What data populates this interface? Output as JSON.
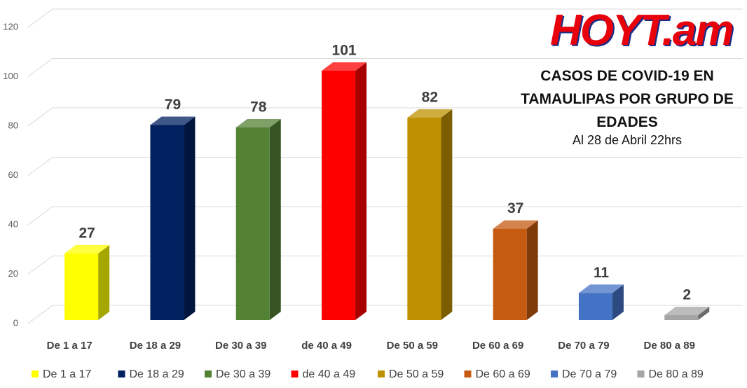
{
  "chart_data": {
    "type": "bar3d",
    "title": "CASOS DE COVID-19 EN TAMAULIPAS POR GRUPO DE EDADES",
    "subtitle": "Al 28 de Abril 22hrs",
    "logo": "HOYT.am",
    "categories": [
      "De 1 a 17",
      "De 18 a 29",
      "De 30 a 39",
      "de 40 a 49",
      "De 50 a 59",
      "De 60 a 69",
      "De 70 a 79",
      "De 80 a 89"
    ],
    "values": [
      27,
      79,
      78,
      101,
      82,
      37,
      11,
      2
    ],
    "colors": [
      "#ffff00",
      "#002060",
      "#548235",
      "#ff0000",
      "#bf9000",
      "#c55a11",
      "#4472c4",
      "#a5a5a5"
    ],
    "ylim": [
      0,
      120
    ],
    "yticks": [
      0,
      20,
      40,
      60,
      80,
      100,
      120
    ],
    "grid": true,
    "legend": "bottom"
  }
}
